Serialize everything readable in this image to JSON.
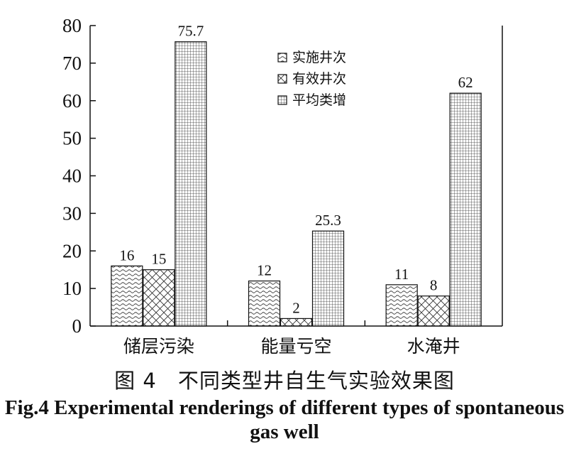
{
  "chart_data": {
    "type": "bar",
    "categories": [
      "储层污染",
      "能量亏空",
      "水淹井"
    ],
    "series": [
      {
        "name": "实施井次",
        "values": [
          16,
          12,
          11
        ],
        "labels": [
          "16",
          "12",
          "11"
        ],
        "pattern": "wave"
      },
      {
        "name": "有效井次",
        "values": [
          15,
          2,
          8
        ],
        "labels": [
          "15",
          "2",
          "8"
        ],
        "pattern": "cross"
      },
      {
        "name": "平均类增",
        "values": [
          75.7,
          25.3,
          62
        ],
        "labels": [
          "75.7",
          "25.3",
          "62"
        ],
        "pattern": "grid"
      }
    ],
    "y_ticks": [
      "0",
      "10",
      "20",
      "30",
      "40",
      "50",
      "60",
      "70",
      "80"
    ],
    "ylim": [
      0,
      80
    ],
    "legend": "top-right",
    "grid": false
  },
  "caption": {
    "cn": "图 4　不同类型井自生气实验效果图",
    "en": "Fig.4 Experimental renderings of different types of spontaneous gas well"
  }
}
